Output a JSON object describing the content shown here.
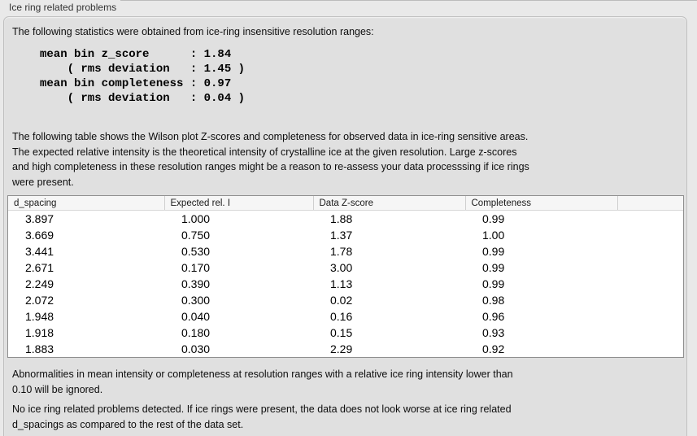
{
  "panel": {
    "title": "Ice ring related problems"
  },
  "intro": {
    "text": "The following statistics were obtained from ice-ring insensitive resolution ranges:"
  },
  "stats": {
    "lines": [
      "mean bin z_score      : 1.84",
      "    ( rms deviation   : 1.45 )",
      "mean bin completeness : 0.97",
      "    ( rms deviation   : 0.04 )"
    ]
  },
  "description": {
    "lines": [
      "The following table shows the Wilson plot Z-scores and completeness for observed data in ice-ring sensitive areas.",
      "The expected relative intensity is the theoretical intensity of crystalline ice at the given resolution. Large z-scores",
      "and high completeness in these resolution ranges might be a reason to re-assess your data processsing if ice rings",
      "were present."
    ]
  },
  "table": {
    "columns": [
      "d_spacing",
      "Expected rel. I",
      "Data Z-score",
      "Completeness",
      ""
    ],
    "rows": [
      [
        "3.897",
        "1.000",
        "1.88",
        "0.99"
      ],
      [
        "3.669",
        "0.750",
        "1.37",
        "1.00"
      ],
      [
        "3.441",
        "0.530",
        "1.78",
        "0.99"
      ],
      [
        "2.671",
        "0.170",
        "3.00",
        "0.99"
      ],
      [
        "2.249",
        "0.390",
        "1.13",
        "0.99"
      ],
      [
        "2.072",
        "0.300",
        "0.02",
        "0.98"
      ],
      [
        "1.948",
        "0.040",
        "0.16",
        "0.96"
      ],
      [
        "1.918",
        "0.180",
        "0.15",
        "0.93"
      ],
      [
        "1.883",
        "0.030",
        "2.29",
        "0.92"
      ]
    ]
  },
  "footnote": {
    "lines": [
      "Abnormalities in mean intensity or completeness at resolution ranges with a relative ice ring intensity lower than",
      "0.10 will be ignored."
    ]
  },
  "conclusion": {
    "lines": [
      "No ice ring related problems detected. If ice rings were present, the data does not look worse at ice ring related",
      "d_spacings as compared to the rest of the data set."
    ]
  },
  "colors": {
    "page_bg": "#e9e9e9",
    "panel_bg": "#e0e0e0",
    "panel_border": "#bfbfbf",
    "table_border": "#8f8f8f",
    "header_bg": "#f6f6f6",
    "text": "#0d0d0d"
  }
}
